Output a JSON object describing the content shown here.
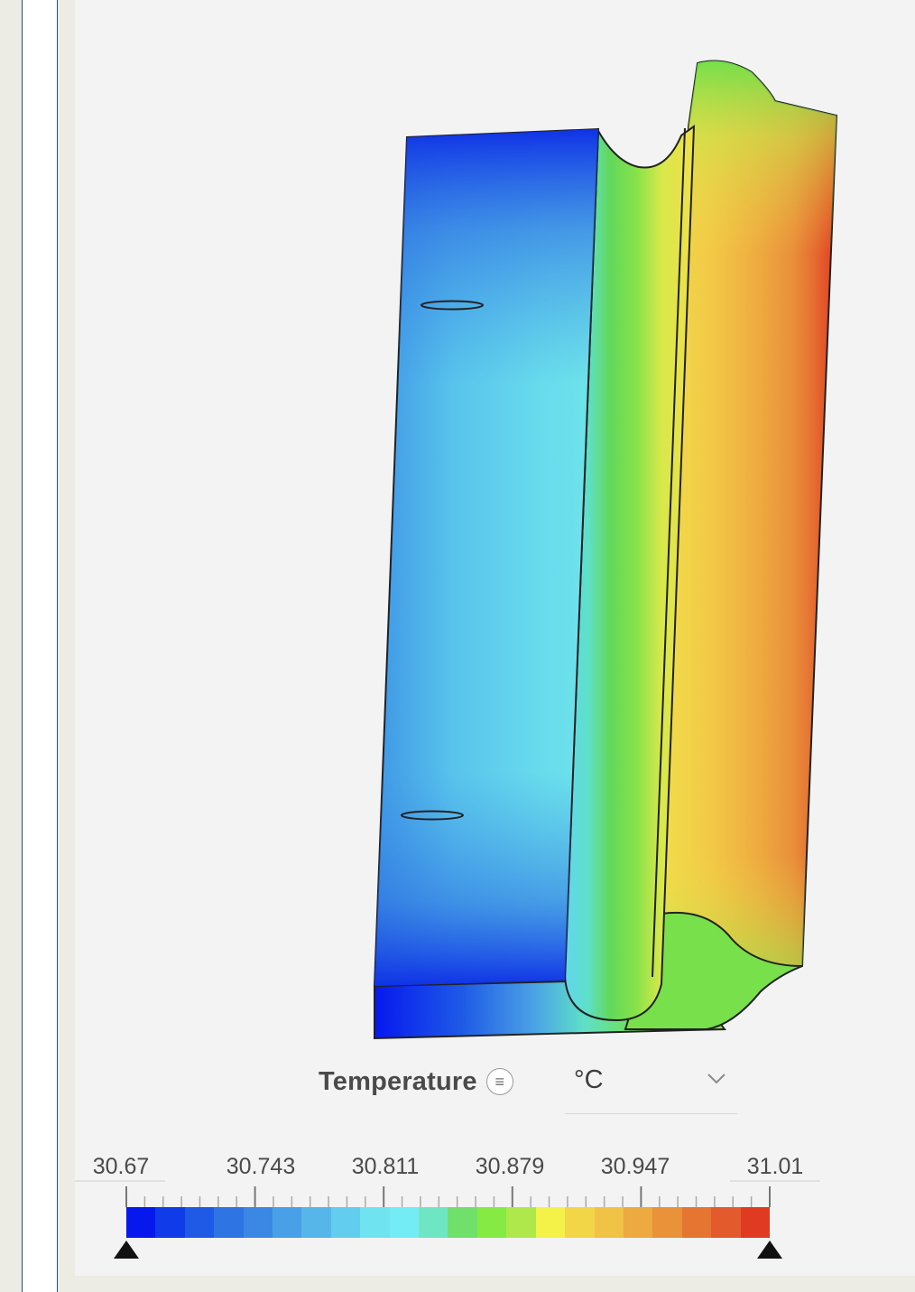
{
  "legend": {
    "title": "Temperature",
    "menu_icon": "menu-icon",
    "unit": "°C",
    "dropdown_icon": "chevron-down-icon",
    "tick_labels": [
      "30.67",
      "30.743",
      "30.811",
      "30.879",
      "30.947",
      "31.01"
    ],
    "min": 30.67,
    "max": 31.01,
    "colors": [
      "#0718ef",
      "#0f3be9",
      "#1e5ae6",
      "#2e74e2",
      "#3a88e4",
      "#4aa0e6",
      "#56b6ea",
      "#62cdee",
      "#70e3f0",
      "#73ecf6",
      "#6ee6c4",
      "#70e06a",
      "#86ea44",
      "#aee84a",
      "#f4f248",
      "#f3d648",
      "#f0c246",
      "#ecaa40",
      "#e9923a",
      "#e67532",
      "#e35a2c",
      "#e13a22"
    ]
  }
}
